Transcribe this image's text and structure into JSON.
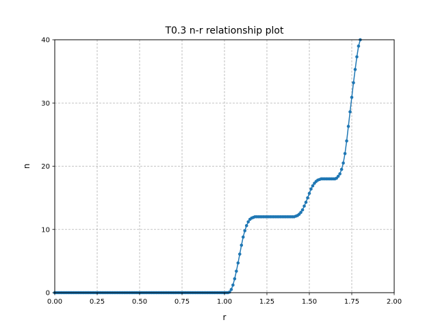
{
  "chart_data": {
    "type": "scatter",
    "title": "T0.3 n-r relationship plot",
    "xlabel": "r",
    "ylabel": "n",
    "xlim": [
      0,
      2
    ],
    "ylim": [
      0,
      40
    ],
    "xticks": [
      0,
      0.25,
      0.5,
      0.75,
      1.0,
      1.25,
      1.5,
      1.75,
      2.0
    ],
    "xtick_labels": [
      "0.00",
      "0.25",
      "0.50",
      "0.75",
      "1.00",
      "1.25",
      "1.50",
      "1.75",
      "2.00"
    ],
    "yticks": [
      0,
      10,
      20,
      30,
      40
    ],
    "ytick_labels": [
      "0",
      "10",
      "20",
      "30",
      "40"
    ],
    "grid": true,
    "marker_color": "#1f77b4",
    "series": [
      {
        "x_step": 0.01,
        "x_start": 0,
        "values": [
          0,
          0,
          0,
          0,
          0,
          0,
          0,
          0,
          0,
          0,
          0,
          0,
          0,
          0,
          0,
          0,
          0,
          0,
          0,
          0,
          0,
          0,
          0,
          0,
          0,
          0,
          0,
          0,
          0,
          0,
          0,
          0,
          0,
          0,
          0,
          0,
          0,
          0,
          0,
          0,
          0,
          0,
          0,
          0,
          0,
          0,
          0,
          0,
          0,
          0,
          0,
          0,
          0,
          0,
          0,
          0,
          0,
          0,
          0,
          0,
          0,
          0,
          0,
          0,
          0,
          0,
          0,
          0,
          0,
          0,
          0,
          0,
          0,
          0,
          0,
          0,
          0,
          0,
          0,
          0,
          0,
          0,
          0,
          0,
          0,
          0,
          0,
          0,
          0,
          0,
          0,
          0,
          0,
          0,
          0,
          0,
          0,
          0,
          0,
          0,
          0,
          0,
          0,
          0.1,
          0.5,
          1.2,
          2.2,
          3.4,
          4.7,
          6.1,
          7.5,
          8.8,
          9.8,
          10.6,
          11.2,
          11.6,
          11.8,
          11.9,
          12.0,
          12.0,
          12.0,
          12.0,
          12.0,
          12.0,
          12.0,
          12.0,
          12.0,
          12.0,
          12.0,
          12.0,
          12.0,
          12.0,
          12.0,
          12.0,
          12.0,
          12.0,
          12.0,
          12.0,
          12.0,
          12.0,
          12.0,
          12.0,
          12.1,
          12.2,
          12.4,
          12.7,
          13.1,
          13.7,
          14.3,
          15.0,
          15.7,
          16.4,
          16.9,
          17.3,
          17.6,
          17.8,
          17.9,
          18.0,
          18.0,
          18.0,
          18.0,
          18.0,
          18.0,
          18.0,
          18.0,
          18.0,
          18.1,
          18.4,
          18.8,
          19.5,
          20.5,
          22.0,
          24.0,
          26.3,
          28.6,
          30.9,
          33.2,
          35.3,
          37.3,
          39.0,
          40.0
        ]
      }
    ]
  }
}
